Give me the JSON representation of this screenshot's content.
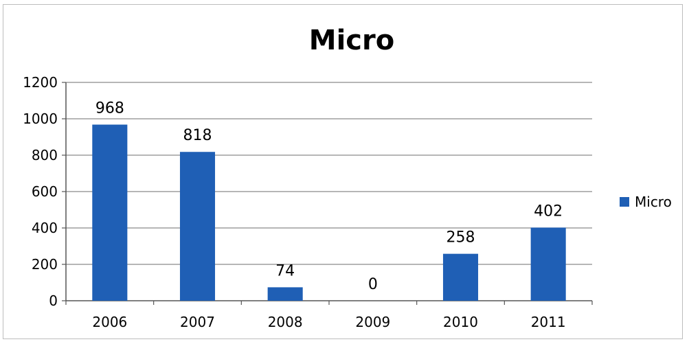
{
  "chart_data": {
    "type": "bar",
    "title": "Micro",
    "categories": [
      "2006",
      "2007",
      "2008",
      "2009",
      "2010",
      "2011"
    ],
    "series": [
      {
        "name": "Micro",
        "values": [
          968,
          818,
          74,
          0,
          258,
          402
        ],
        "color": "#1f5fb5"
      }
    ],
    "data_labels": [
      "968",
      "818",
      "74",
      "0",
      "258",
      "402"
    ],
    "y_ticks": [
      "0",
      "200",
      "400",
      "600",
      "800",
      "1000",
      "1200"
    ],
    "ylim": [
      0,
      1200
    ],
    "grid": true,
    "legend_position": "right",
    "xlabel": "",
    "ylabel": ""
  }
}
